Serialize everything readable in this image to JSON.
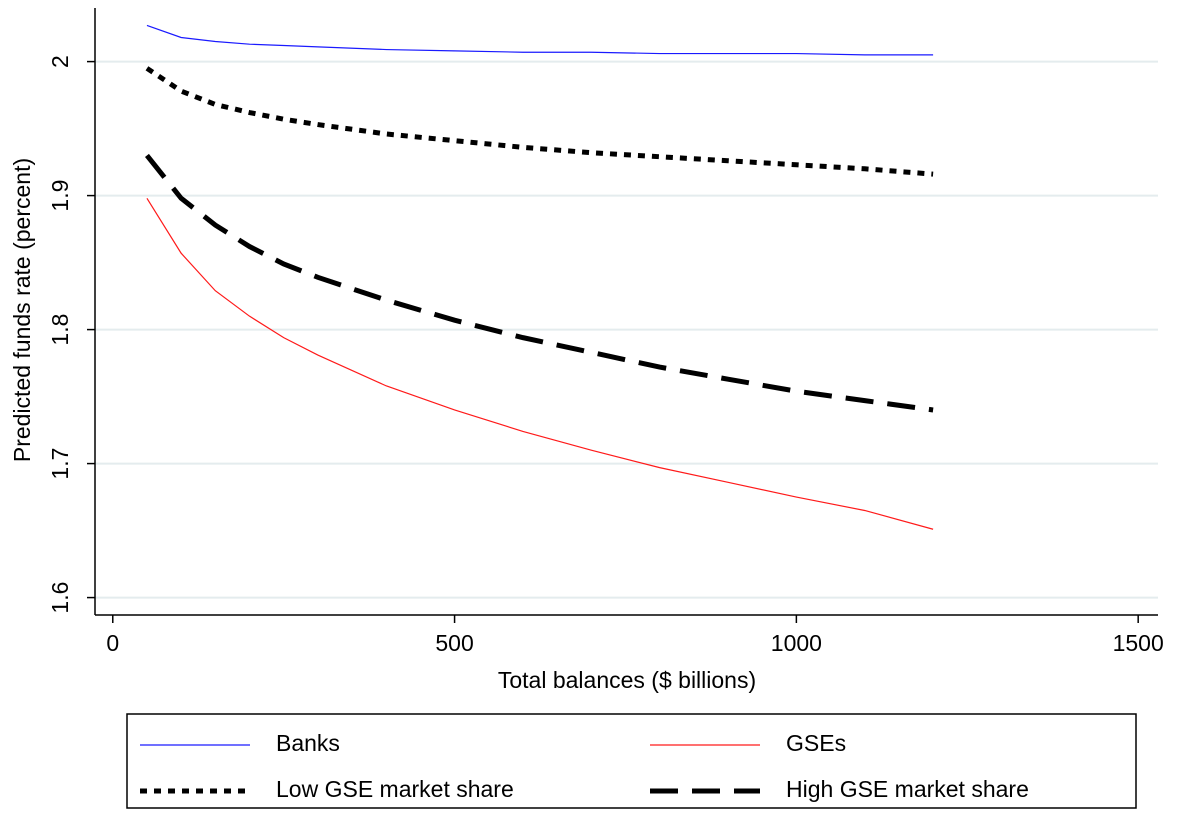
{
  "chart_data": {
    "type": "line",
    "x_label": "Total balances ($ billions)",
    "y_label": "Predicted funds rate (percent)",
    "x": [
      50,
      100,
      150,
      200,
      250,
      300,
      400,
      500,
      600,
      700,
      800,
      900,
      1000,
      1100,
      1200
    ],
    "series": [
      {
        "name": "Banks",
        "color": "#1a1aff",
        "line_style": "solid",
        "line_width": 1.2,
        "values": [
          2.027,
          2.018,
          2.015,
          2.013,
          2.012,
          2.011,
          2.009,
          2.008,
          2.007,
          2.007,
          2.006,
          2.006,
          2.006,
          2.005,
          2.005
        ]
      },
      {
        "name": "GSEs",
        "color": "#ff1a1a",
        "line_style": "solid",
        "line_width": 1.2,
        "values": [
          1.898,
          1.857,
          1.829,
          1.81,
          1.794,
          1.781,
          1.758,
          1.74,
          1.724,
          1.71,
          1.697,
          1.686,
          1.675,
          1.665,
          1.651
        ]
      },
      {
        "name": "Low GSE market share",
        "color": "#000000",
        "line_style": "dot",
        "line_width": 5,
        "values": [
          1.995,
          1.978,
          1.968,
          1.962,
          1.957,
          1.953,
          1.946,
          1.941,
          1.936,
          1.932,
          1.929,
          1.926,
          1.923,
          1.92,
          1.916
        ]
      },
      {
        "name": "High GSE market share",
        "color": "#000000",
        "line_style": "dash",
        "line_width": 5,
        "values": [
          1.93,
          1.898,
          1.878,
          1.862,
          1.849,
          1.839,
          1.822,
          1.807,
          1.794,
          1.783,
          1.772,
          1.763,
          1.754,
          1.747,
          1.74
        ]
      }
    ],
    "xlim": [
      -26,
      1529
    ],
    "xticks": [
      0,
      500,
      1000,
      1500
    ],
    "ylim": [
      1.587,
      2.04
    ],
    "yticks": [
      1.6,
      1.7,
      1.8,
      1.9,
      2
    ],
    "grid": true,
    "legend": "bottom"
  }
}
